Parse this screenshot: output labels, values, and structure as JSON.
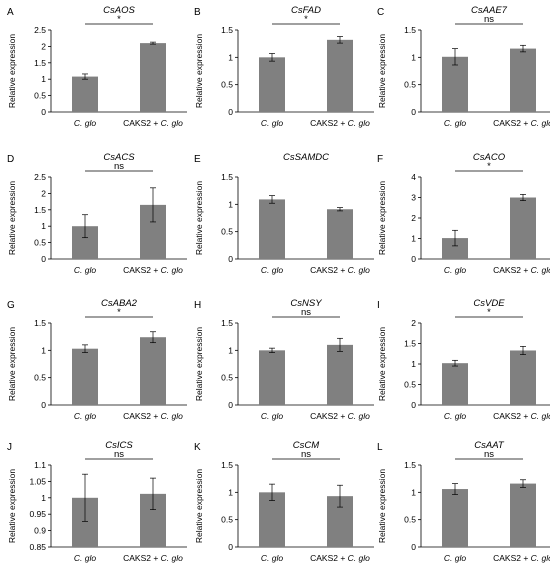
{
  "ylabel": "Relative expression",
  "categories": [
    {
      "parts": [
        {
          "t": "C. glo",
          "i": true
        }
      ]
    },
    {
      "parts": [
        {
          "t": "CAKS2 + ",
          "i": false
        },
        {
          "t": "C. glo",
          "i": true
        }
      ]
    }
  ],
  "chart_data": [
    {
      "type": "bar",
      "panel": "A",
      "title": "CsAOS",
      "significance": "*",
      "ylim": [
        0,
        2.5
      ],
      "ticks": [
        0,
        0.5,
        1,
        1.5,
        2,
        2.5
      ],
      "tick_labels": [
        "0",
        "0.5",
        "1",
        "1.5",
        "2",
        "2.5"
      ],
      "values": [
        1.08,
        2.1
      ],
      "errors": [
        0.08,
        0.03
      ]
    },
    {
      "type": "bar",
      "panel": "B",
      "title": "CsFAD",
      "significance": "*",
      "ylim": [
        0,
        1.5
      ],
      "ticks": [
        0,
        0.5,
        1,
        1.5
      ],
      "tick_labels": [
        "0",
        "0.5",
        "1",
        "1.5"
      ],
      "values": [
        1.0,
        1.32
      ],
      "errors": [
        0.07,
        0.06
      ]
    },
    {
      "type": "bar",
      "panel": "C",
      "title": "CsAAE7",
      "significance": "ns",
      "ylim": [
        0,
        1.5
      ],
      "ticks": [
        0,
        0.5,
        1,
        1.5
      ],
      "tick_labels": [
        "0",
        "0.5",
        "1",
        "1.5"
      ],
      "values": [
        1.01,
        1.16
      ],
      "errors": [
        0.15,
        0.06
      ]
    },
    {
      "type": "bar",
      "panel": "D",
      "title": "CsACS",
      "significance": "ns",
      "ylim": [
        0,
        2.5
      ],
      "ticks": [
        0,
        0.5,
        1,
        1.5,
        2,
        2.5
      ],
      "tick_labels": [
        "0",
        "0.5",
        "1",
        "1.5",
        "2",
        "2.5"
      ],
      "values": [
        1.0,
        1.65
      ],
      "errors": [
        0.35,
        0.52
      ]
    },
    {
      "type": "bar",
      "panel": "E",
      "title": "CsSAMDC",
      "significance": "",
      "ylim": [
        0,
        1.5
      ],
      "ticks": [
        0,
        0.5,
        1,
        1.5
      ],
      "tick_labels": [
        "0",
        "0.5",
        "1",
        "1.5"
      ],
      "values": [
        1.09,
        0.91
      ],
      "errors": [
        0.07,
        0.03
      ]
    },
    {
      "type": "bar",
      "panel": "F",
      "title": "CsACO",
      "significance": "*",
      "ylim": [
        0,
        4
      ],
      "ticks": [
        0,
        1,
        2,
        3,
        4
      ],
      "tick_labels": [
        "0",
        "1",
        "2",
        "3",
        "4"
      ],
      "values": [
        1.02,
        3.0
      ],
      "errors": [
        0.38,
        0.15
      ]
    },
    {
      "type": "bar",
      "panel": "G",
      "title": "CsABA2",
      "significance": "*",
      "ylim": [
        0,
        1.5
      ],
      "ticks": [
        0,
        0.5,
        1,
        1.5
      ],
      "tick_labels": [
        "0",
        "0.5",
        "1",
        "1.5"
      ],
      "values": [
        1.03,
        1.24
      ],
      "errors": [
        0.07,
        0.1
      ]
    },
    {
      "type": "bar",
      "panel": "H",
      "title": "CsNSY",
      "significance": "ns",
      "ylim": [
        0,
        1.5
      ],
      "ticks": [
        0,
        0.5,
        1,
        1.5
      ],
      "tick_labels": [
        "0",
        "0.5",
        "1",
        "1.5"
      ],
      "values": [
        1.0,
        1.1
      ],
      "errors": [
        0.04,
        0.12
      ]
    },
    {
      "type": "bar",
      "panel": "I",
      "title": "CsVDE",
      "significance": "*",
      "ylim": [
        0,
        2
      ],
      "ticks": [
        0,
        0.5,
        1,
        1.5,
        2
      ],
      "tick_labels": [
        "0",
        "0.5",
        "1",
        "1.5",
        "2"
      ],
      "values": [
        1.02,
        1.33
      ],
      "errors": [
        0.07,
        0.1
      ]
    },
    {
      "type": "bar",
      "panel": "J",
      "title": "CsICS",
      "significance": "ns",
      "ylim": [
        0.85,
        1.1
      ],
      "ticks": [
        0.85,
        0.9,
        0.95,
        1,
        1.05,
        1.1
      ],
      "tick_labels": [
        "0.85",
        "0.9",
        "0.95",
        "1",
        "1.05",
        "1.1"
      ],
      "values": [
        1.0,
        1.012
      ],
      "errors": [
        0.072,
        0.048
      ]
    },
    {
      "type": "bar",
      "panel": "K",
      "title": "CsCM",
      "significance": "ns",
      "ylim": [
        0,
        1.5
      ],
      "ticks": [
        0,
        0.5,
        1,
        1.5
      ],
      "tick_labels": [
        "0",
        "0.5",
        "1",
        "1.5"
      ],
      "values": [
        1.0,
        0.93
      ],
      "errors": [
        0.15,
        0.2
      ]
    },
    {
      "type": "bar",
      "panel": "L",
      "title": "CsAAT",
      "significance": "ns",
      "ylim": [
        0,
        1.5
      ],
      "ticks": [
        0,
        0.5,
        1,
        1.5
      ],
      "tick_labels": [
        "0",
        "0.5",
        "1",
        "1.5"
      ],
      "values": [
        1.06,
        1.16
      ],
      "errors": [
        0.1,
        0.07
      ]
    }
  ]
}
